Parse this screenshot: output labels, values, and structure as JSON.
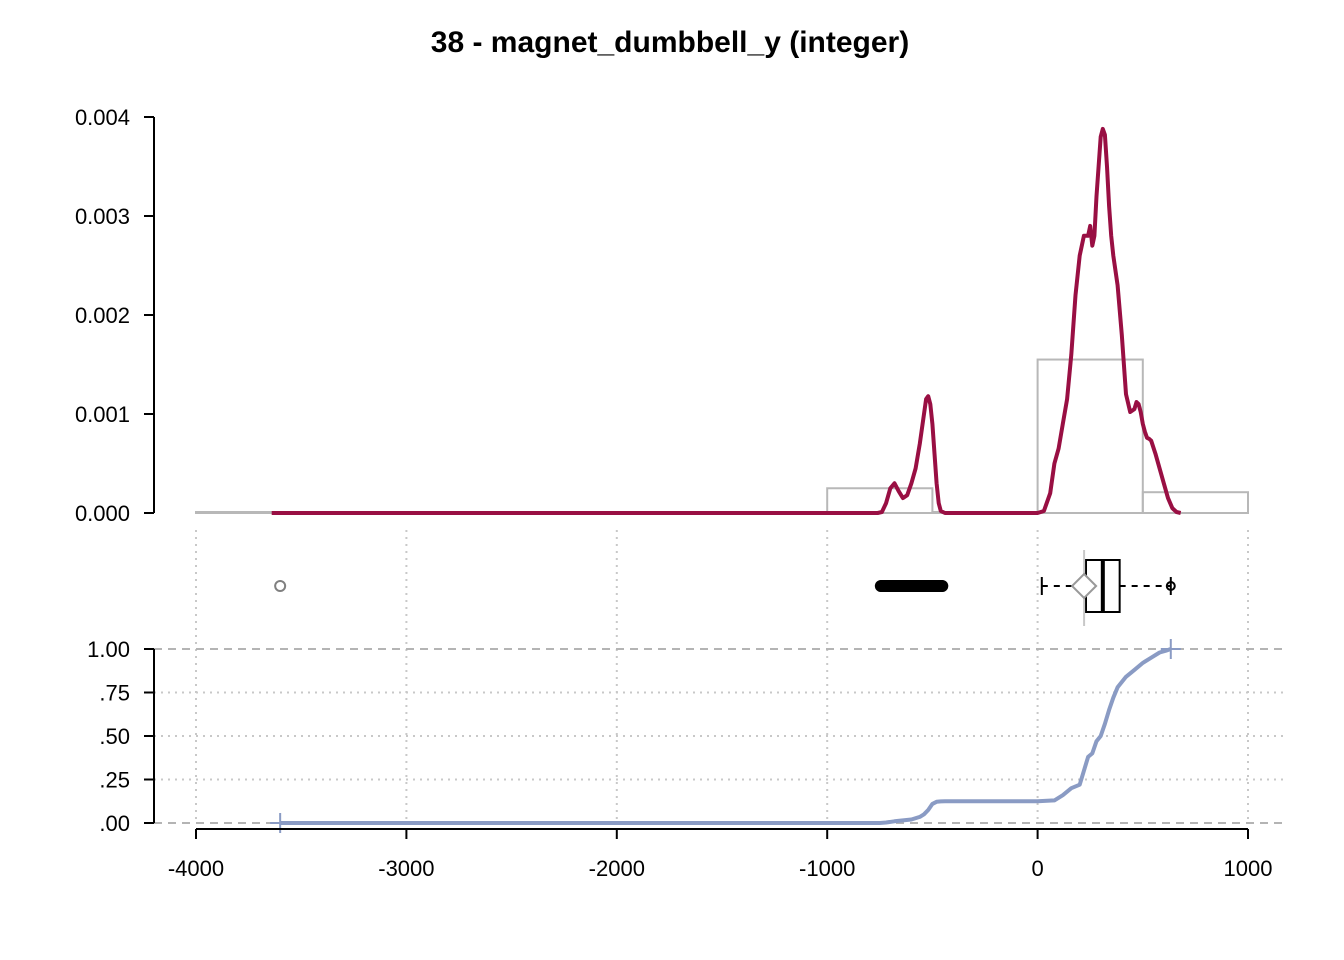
{
  "chart_data": {
    "title": "38 - magnet_dumbbell_y (integer)",
    "type": "histogram+density+boxplot+ecdf",
    "x_ticks": [
      "-4000",
      "-3000",
      "-2000",
      "-1000",
      "0",
      "1000"
    ],
    "x_tick_values": [
      -4000,
      -3000,
      -2000,
      -1000,
      0,
      1000
    ],
    "xlim": [
      -4000,
      1000
    ],
    "density_panel": {
      "y_ticks": [
        "0.000",
        "0.001",
        "0.002",
        "0.003",
        "0.004"
      ],
      "y_tick_values": [
        0,
        0.001,
        0.002,
        0.003,
        0.004
      ],
      "ylim": [
        0,
        0.004
      ],
      "histogram": {
        "bin_edges": [
          -4000,
          -3500,
          -3000,
          -2500,
          -2000,
          -1500,
          -1000,
          -500,
          0,
          500,
          1000
        ],
        "density": [
          5e-07,
          0,
          0,
          0,
          0,
          0,
          0.00025,
          1e-05,
          0.00155,
          0.00021
        ]
      },
      "density_curve": {
        "x": [
          -3640,
          -760,
          -740,
          -720,
          -700,
          -680,
          -660,
          -640,
          -620,
          -600,
          -580,
          -560,
          -540,
          -530,
          -520,
          -510,
          -500,
          -490,
          -480,
          -470,
          -460,
          -440,
          -420,
          -400,
          -300,
          -100,
          0,
          30,
          60,
          80,
          100,
          120,
          140,
          160,
          180,
          200,
          220,
          240,
          250,
          260,
          270,
          280,
          290,
          300,
          310,
          320,
          330,
          340,
          350,
          360,
          380,
          400,
          420,
          440,
          460,
          470,
          480,
          490,
          500,
          510,
          520,
          530,
          540,
          560,
          580,
          600,
          620,
          640,
          660,
          680
        ],
        "y": [
          0,
          0,
          1e-05,
          0.0001,
          0.00025,
          0.0003,
          0.00022,
          0.00015,
          0.00018,
          0.0003,
          0.00045,
          0.0007,
          0.001,
          0.00115,
          0.00118,
          0.0011,
          0.0009,
          0.0006,
          0.0003,
          0.0001,
          2e-05,
          0,
          0,
          0,
          0,
          0,
          0,
          2e-05,
          0.0002,
          0.0005,
          0.00065,
          0.0009,
          0.00115,
          0.0016,
          0.0022,
          0.0026,
          0.0028,
          0.0028,
          0.0029,
          0.0027,
          0.0028,
          0.0032,
          0.0035,
          0.0038,
          0.00388,
          0.00382,
          0.0035,
          0.0031,
          0.0028,
          0.0026,
          0.0023,
          0.0018,
          0.0012,
          0.00102,
          0.00105,
          0.00112,
          0.0011,
          0.00102,
          0.0009,
          0.00082,
          0.00076,
          0.00075,
          0.00073,
          0.0006,
          0.00045,
          0.0003,
          0.00015,
          5e-05,
          1e-05,
          0
        ]
      }
    },
    "boxplot": {
      "min": 20,
      "q1": 230,
      "median": 310,
      "q3": 390,
      "max": 633,
      "mean": 221,
      "outliers_low_range": [
        -745,
        -450
      ],
      "outliers_low_extreme": -3600,
      "outlier_high": 633
    },
    "ecdf_panel": {
      "y_ticks": [
        "1.00",
        ".75",
        ".50",
        ".25",
        ".00"
      ],
      "y_tick_values": [
        1,
        0.75,
        0.5,
        0.25,
        0
      ],
      "ylim": [
        0,
        1
      ],
      "x": [
        -3600,
        -750,
        -720,
        -680,
        -640,
        -600,
        -560,
        -540,
        -520,
        -500,
        -480,
        -460,
        -440,
        -400,
        -200,
        0,
        80,
        120,
        160,
        200,
        220,
        240,
        260,
        280,
        300,
        320,
        340,
        360,
        380,
        420,
        460,
        500,
        540,
        580,
        610,
        633
      ],
      "y": [
        0,
        0,
        0.003,
        0.01,
        0.015,
        0.02,
        0.035,
        0.05,
        0.075,
        0.11,
        0.122,
        0.124,
        0.125,
        0.125,
        0.125,
        0.125,
        0.13,
        0.16,
        0.2,
        0.22,
        0.3,
        0.38,
        0.4,
        0.47,
        0.5,
        0.57,
        0.65,
        0.72,
        0.78,
        0.84,
        0.88,
        0.92,
        0.95,
        0.98,
        0.99,
        1.0
      ],
      "endpoints": [
        -3600,
        633
      ]
    },
    "colors": {
      "density": "#990f43",
      "histogram": "#b8b8b8",
      "ecdf": "#8a9bc4",
      "grid": "#c8c8c8",
      "axis": "#000000",
      "outlier_extreme": "#808080"
    }
  }
}
